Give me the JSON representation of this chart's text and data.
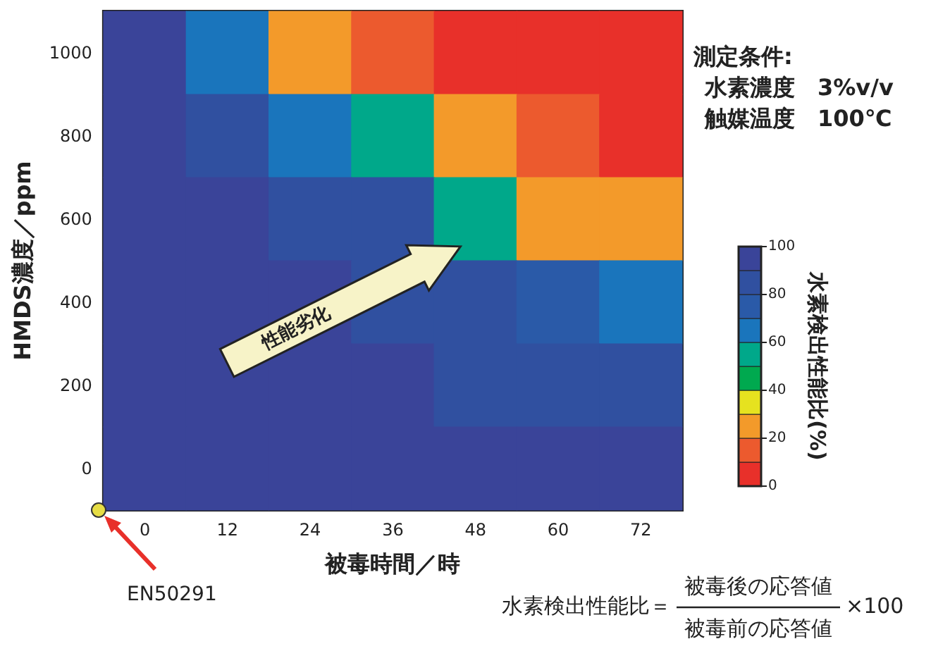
{
  "chart_data": {
    "type": "heatmap",
    "xlabel": "被毒時間／時",
    "ylabel": "HMDS濃度／ppm",
    "clabel": "水素検出性能比(%)",
    "categories": [
      "0",
      "12",
      "24",
      "36",
      "48",
      "60",
      "72"
    ],
    "y_categories": [
      "1000",
      "800",
      "600",
      "400",
      "200",
      "0"
    ],
    "cells": [
      [
        95,
        61,
        29,
        15,
        5,
        5,
        5
      ],
      [
        97,
        82,
        68,
        58,
        22,
        12,
        5
      ],
      [
        98,
        91,
        85,
        80,
        55,
        28,
        20
      ],
      [
        99,
        94,
        91,
        88,
        80,
        73,
        65
      ],
      [
        99,
        96,
        94,
        92,
        89,
        86,
        84
      ],
      [
        100,
        99,
        97,
        96,
        95,
        93,
        91
      ]
    ],
    "clim": [
      0,
      100
    ],
    "cticks": [
      0,
      20,
      40,
      60,
      80,
      100
    ],
    "colors": [
      "#e8302a",
      "#ec5a2e",
      "#f39a2a",
      "#e6e21f",
      "#00a94f",
      "#00a88a",
      "#1a75bc",
      "#2a5aa8",
      "#3050a0",
      "#3a4499"
    ],
    "annotations": [
      "測定条件:",
      "水素濃度　3%v/v",
      "触媒温度　100℃",
      "性能劣化",
      "EN50291",
      "水素検出性能比＝",
      "被毒後の応答値",
      "被毒前の応答値",
      "×100"
    ]
  }
}
